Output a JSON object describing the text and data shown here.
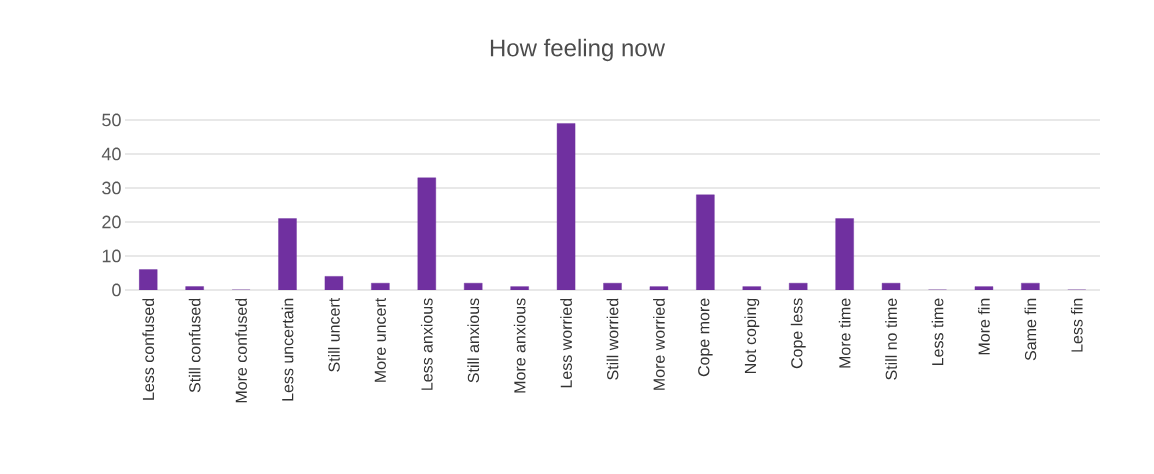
{
  "chart_data": {
    "type": "bar",
    "title": "How feeling now",
    "categories": [
      "Less confused",
      "Still confused",
      "More confused",
      "Less uncertain",
      "Still uncert",
      "More uncert",
      "Less anxious",
      "Still anxious",
      "More anxious",
      "Less worried",
      "Still worried",
      "More worried",
      "Cope more",
      "Not coping",
      "Cope less",
      "More time",
      "Still no time",
      "Less time",
      "More fin",
      "Same fin",
      "Less fin"
    ],
    "values": [
      6,
      1,
      0,
      21,
      4,
      2,
      33,
      2,
      1,
      49,
      2,
      1,
      28,
      1,
      2,
      21,
      2,
      0,
      1,
      2,
      0
    ],
    "color": "#7030a0",
    "ylim": [
      0,
      50
    ],
    "yticks": [
      0,
      10,
      20,
      30,
      40,
      50
    ],
    "grid": "y"
  }
}
